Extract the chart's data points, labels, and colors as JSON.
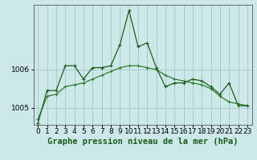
{
  "background_color": "#cce8e8",
  "grid_color": "#aacccc",
  "line_color1": "#1a5c1a",
  "line_color2": "#2e7d2e",
  "xlabel": "Graphe pression niveau de la mer (hPa)",
  "xlim": [
    -0.5,
    23.5
  ],
  "ylim": [
    1004.55,
    1007.7
  ],
  "yticks": [
    1005.0,
    1006.0
  ],
  "xticks": [
    0,
    1,
    2,
    3,
    4,
    5,
    6,
    7,
    8,
    9,
    10,
    11,
    12,
    13,
    14,
    15,
    16,
    17,
    18,
    19,
    20,
    21,
    22,
    23
  ],
  "series1_x": [
    0,
    1,
    2,
    3,
    4,
    5,
    6,
    7,
    8,
    9,
    10,
    11,
    12,
    13,
    14,
    15,
    16,
    17,
    18,
    19,
    20,
    21,
    22,
    23
  ],
  "series1_y": [
    1004.6,
    1005.45,
    1005.45,
    1006.1,
    1006.1,
    1005.75,
    1006.05,
    1006.05,
    1006.1,
    1006.65,
    1007.55,
    1006.6,
    1006.7,
    1006.05,
    1005.55,
    1005.65,
    1005.65,
    1005.75,
    1005.7,
    1005.55,
    1005.35,
    1005.65,
    1005.05,
    1005.05
  ],
  "series2_x": [
    0,
    1,
    2,
    3,
    4,
    5,
    6,
    7,
    8,
    9,
    10,
    11,
    12,
    13,
    14,
    15,
    16,
    17,
    18,
    19,
    20,
    21,
    22,
    23
  ],
  "series2_y": [
    1004.7,
    1005.3,
    1005.35,
    1005.55,
    1005.6,
    1005.65,
    1005.75,
    1005.85,
    1005.95,
    1006.05,
    1006.1,
    1006.1,
    1006.05,
    1006.0,
    1005.85,
    1005.75,
    1005.7,
    1005.65,
    1005.6,
    1005.5,
    1005.3,
    1005.15,
    1005.1,
    1005.05
  ],
  "tick_fontsize": 6.5,
  "xlabel_fontsize": 7.5,
  "marker": "+"
}
